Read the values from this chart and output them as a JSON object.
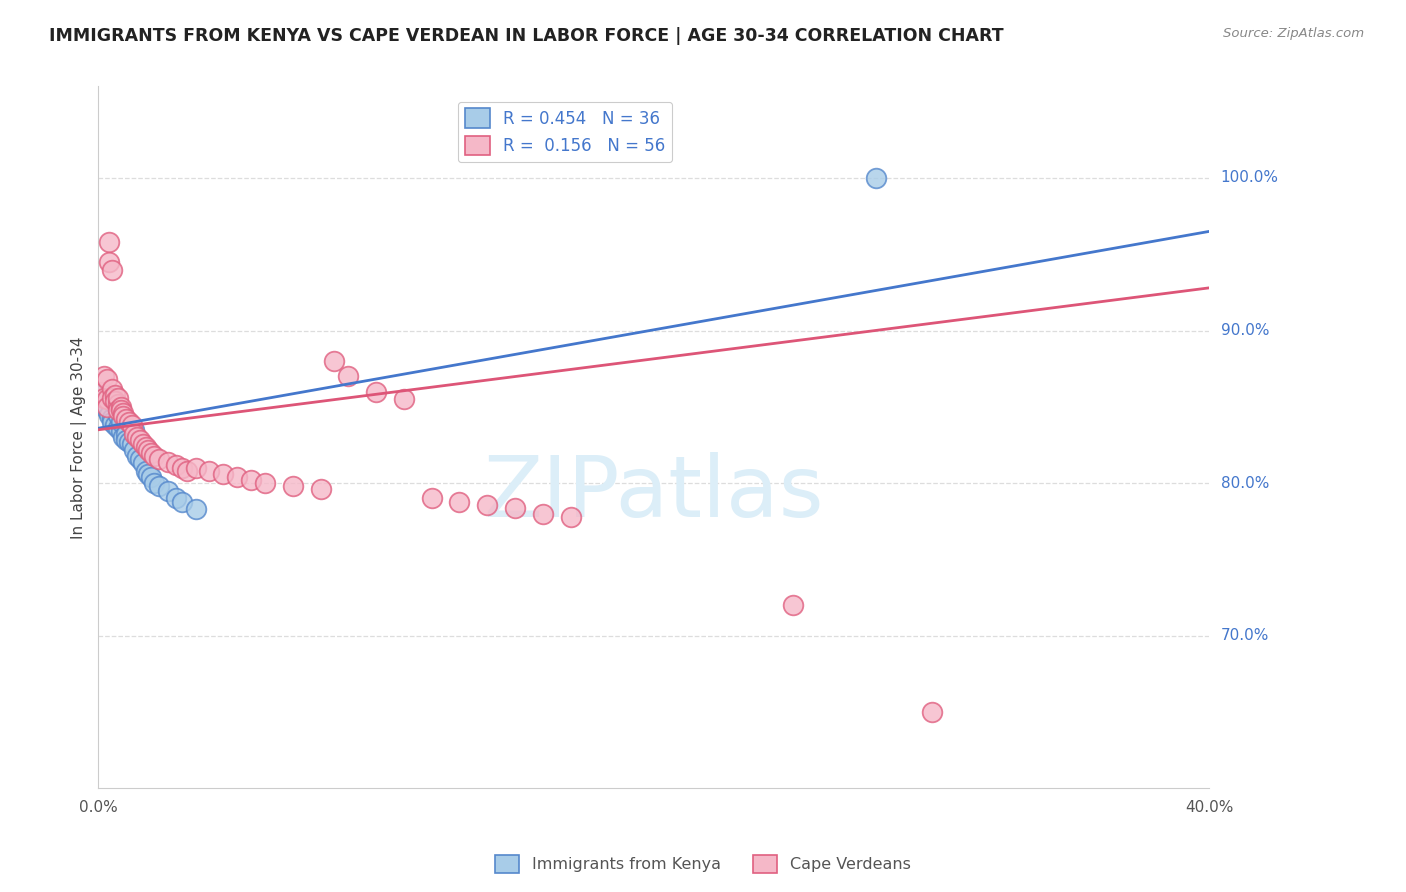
{
  "title": "IMMIGRANTS FROM KENYA VS CAPE VERDEAN IN LABOR FORCE | AGE 30-34 CORRELATION CHART",
  "source": "Source: ZipAtlas.com",
  "ylabel": "In Labor Force | Age 30-34",
  "xlim": [
    0.0,
    0.4
  ],
  "ylim": [
    0.6,
    1.06
  ],
  "blue_R": 0.454,
  "blue_N": 36,
  "pink_R": 0.156,
  "pink_N": 56,
  "blue_color": "#a8cce8",
  "pink_color": "#f5b8c8",
  "blue_edge_color": "#5588cc",
  "pink_edge_color": "#e06080",
  "blue_line_color": "#4477cc",
  "pink_line_color": "#dd5577",
  "legend_label_blue": "Immigrants from Kenya",
  "legend_label_pink": "Cape Verdeans",
  "grid_color": "#dddddd",
  "axis_color": "#cccccc",
  "right_label_color": "#4477cc",
  "title_color": "#222222",
  "source_color": "#888888",
  "watermark_color": "#dceef8",
  "ytick_positions": [
    0.7,
    0.8,
    0.9,
    1.0
  ],
  "ytick_labels": [
    "70.0%",
    "80.0%",
    "90.0%",
    "100.0%"
  ],
  "xtick_positions": [
    0.0,
    0.05,
    0.1,
    0.15,
    0.2,
    0.25,
    0.3,
    0.35,
    0.4
  ],
  "xtick_labels": [
    "0.0%",
    "",
    "",
    "",
    "",
    "",
    "",
    "",
    "40.0%"
  ],
  "blue_x": [
    0.001,
    0.002,
    0.002,
    0.003,
    0.003,
    0.003,
    0.004,
    0.004,
    0.005,
    0.005,
    0.006,
    0.006,
    0.007,
    0.007,
    0.008,
    0.008,
    0.009,
    0.01,
    0.01,
    0.011,
    0.012,
    0.013,
    0.013,
    0.014,
    0.015,
    0.016,
    0.017,
    0.018,
    0.019,
    0.02,
    0.022,
    0.025,
    0.028,
    0.03,
    0.035,
    0.28
  ],
  "blue_y": [
    0.858,
    0.855,
    0.852,
    0.85,
    0.855,
    0.848,
    0.845,
    0.857,
    0.843,
    0.84,
    0.838,
    0.852,
    0.836,
    0.845,
    0.834,
    0.84,
    0.83,
    0.832,
    0.828,
    0.827,
    0.826,
    0.822,
    0.835,
    0.818,
    0.816,
    0.813,
    0.808,
    0.806,
    0.804,
    0.8,
    0.798,
    0.795,
    0.79,
    0.788,
    0.783,
    1.0
  ],
  "pink_x": [
    0.001,
    0.002,
    0.002,
    0.003,
    0.003,
    0.003,
    0.004,
    0.004,
    0.005,
    0.005,
    0.005,
    0.006,
    0.006,
    0.007,
    0.007,
    0.007,
    0.008,
    0.008,
    0.009,
    0.009,
    0.01,
    0.011,
    0.012,
    0.013,
    0.014,
    0.015,
    0.016,
    0.017,
    0.018,
    0.019,
    0.02,
    0.022,
    0.025,
    0.028,
    0.03,
    0.032,
    0.035,
    0.04,
    0.045,
    0.05,
    0.055,
    0.06,
    0.07,
    0.08,
    0.085,
    0.09,
    0.1,
    0.11,
    0.12,
    0.13,
    0.14,
    0.15,
    0.16,
    0.17,
    0.25,
    0.3
  ],
  "pink_y": [
    0.86,
    0.856,
    0.87,
    0.868,
    0.855,
    0.85,
    0.958,
    0.945,
    0.862,
    0.856,
    0.94,
    0.858,
    0.854,
    0.852,
    0.856,
    0.848,
    0.85,
    0.848,
    0.846,
    0.844,
    0.842,
    0.84,
    0.838,
    0.832,
    0.83,
    0.828,
    0.826,
    0.824,
    0.822,
    0.82,
    0.818,
    0.816,
    0.814,
    0.812,
    0.81,
    0.808,
    0.81,
    0.808,
    0.806,
    0.804,
    0.802,
    0.8,
    0.798,
    0.796,
    0.88,
    0.87,
    0.86,
    0.855,
    0.79,
    0.788,
    0.786,
    0.784,
    0.78,
    0.778,
    0.72,
    0.65
  ]
}
